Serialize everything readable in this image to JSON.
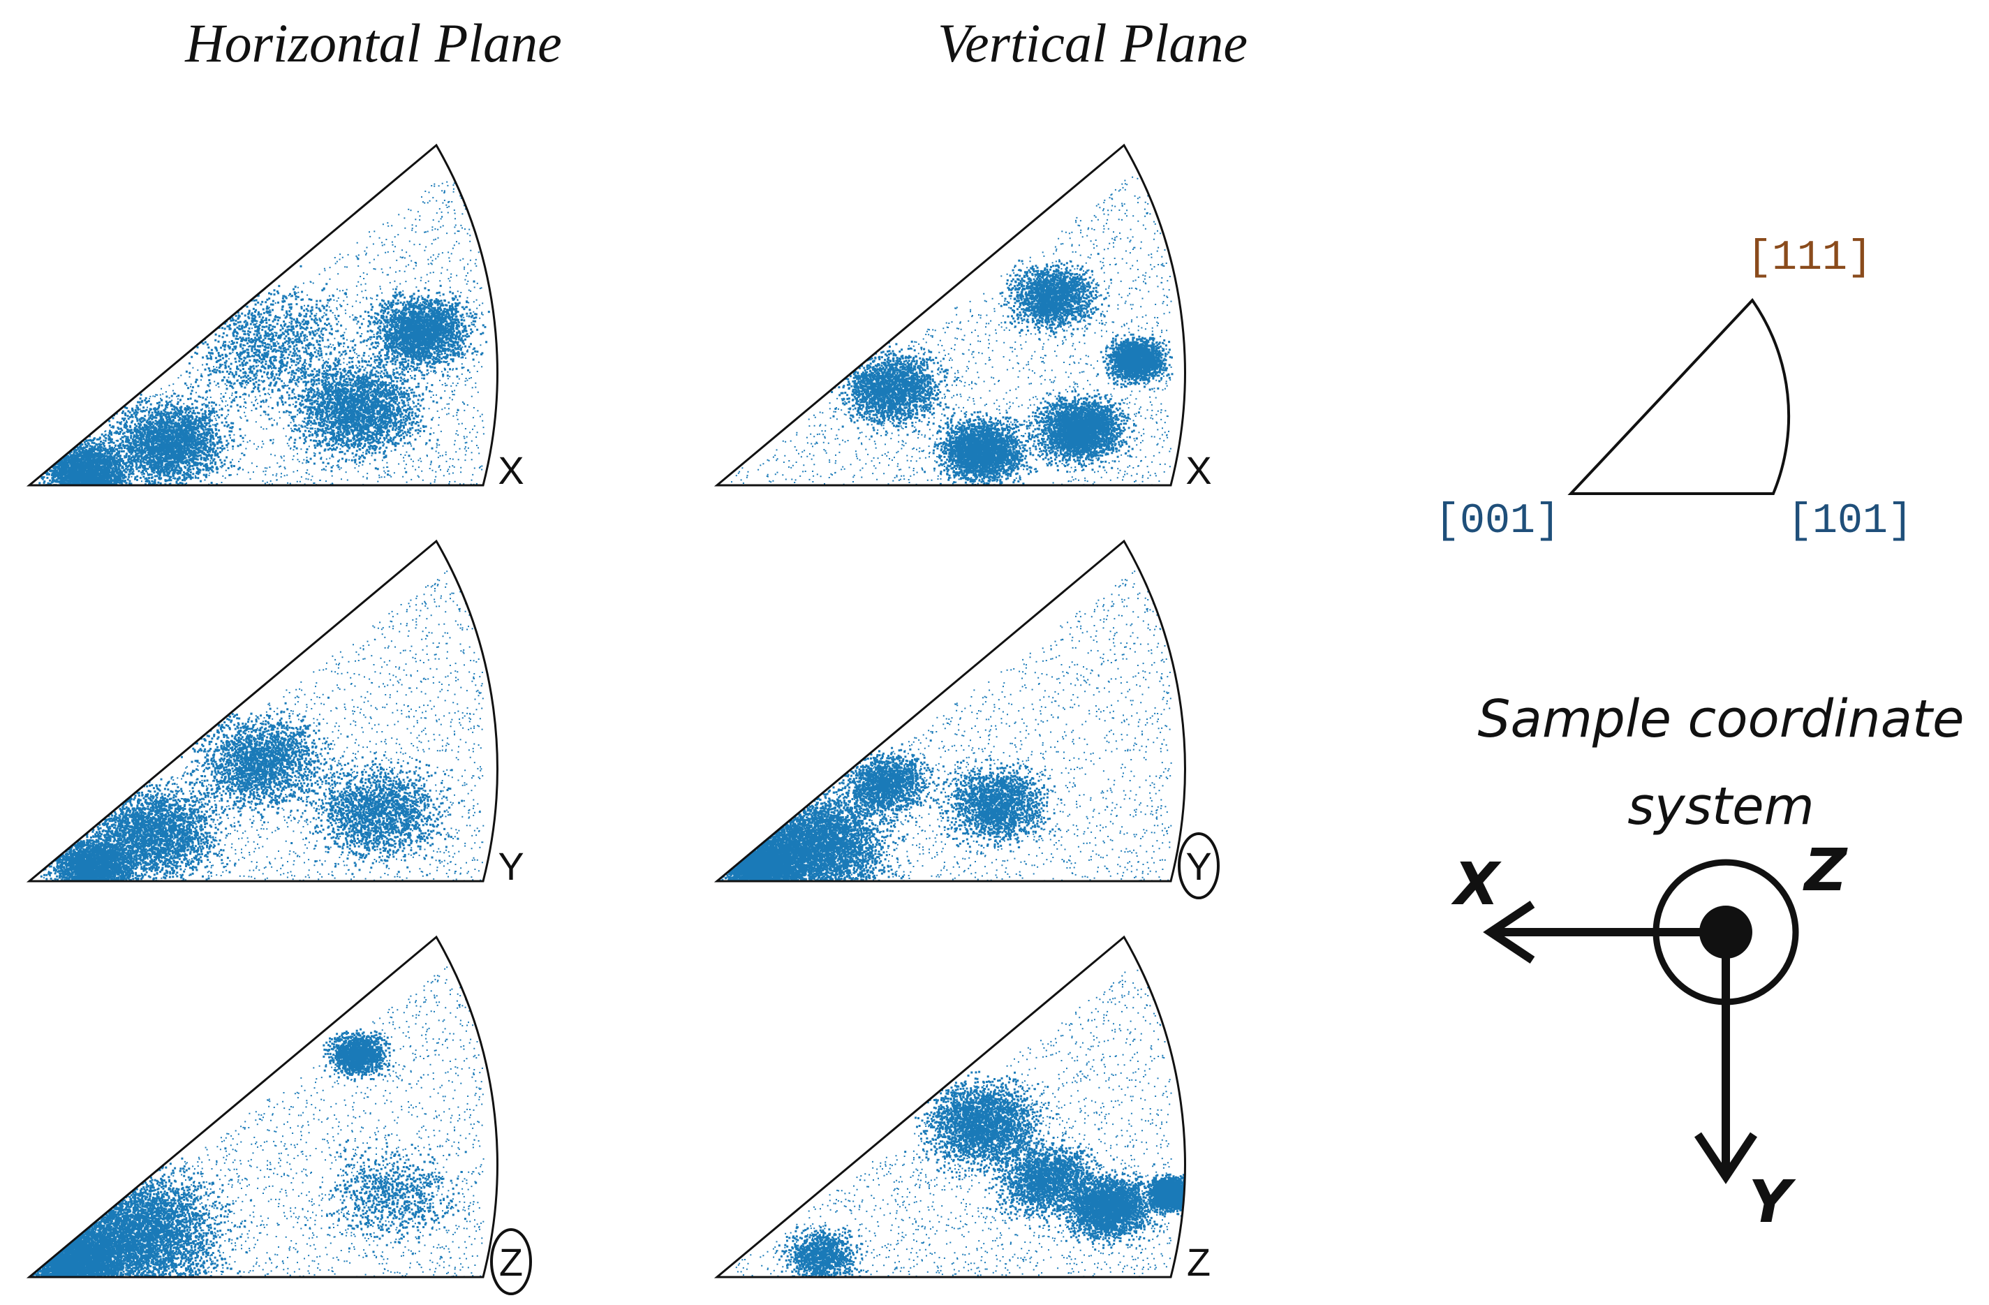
{
  "figure": {
    "columns": [
      {
        "id": "horizontal",
        "title": "Horizontal Plane"
      },
      {
        "id": "vertical",
        "title": "Vertical Plane"
      }
    ],
    "panels": [
      {
        "id": "h-x",
        "column": "horizontal",
        "axis": "X",
        "circled": false,
        "density": "moderate, concentrated near [001]-[101] edge"
      },
      {
        "id": "h-y",
        "column": "horizontal",
        "axis": "Y",
        "circled": false,
        "density": "moderate, spread"
      },
      {
        "id": "h-z",
        "column": "horizontal",
        "axis": "Z",
        "circled": true,
        "density": "strong near [001]"
      },
      {
        "id": "v-x",
        "column": "vertical",
        "axis": "X",
        "circled": false,
        "density": "clusters in center and right"
      },
      {
        "id": "v-y",
        "column": "vertical",
        "axis": "Y",
        "circled": true,
        "density": "strong near [001]"
      },
      {
        "id": "v-z",
        "column": "vertical",
        "axis": "Z",
        "circled": false,
        "density": "clusters across triangle"
      }
    ],
    "dot_color": "#1a7ab8",
    "key_triangle": {
      "labels": {
        "top": "[111]",
        "left": "[001]",
        "right": "[101]"
      }
    },
    "sample_coordinate_system": {
      "title_line1": "Sample coordinate",
      "title_line2": "system",
      "x_label": "X",
      "y_label": "Y",
      "z_label": "Z"
    }
  }
}
